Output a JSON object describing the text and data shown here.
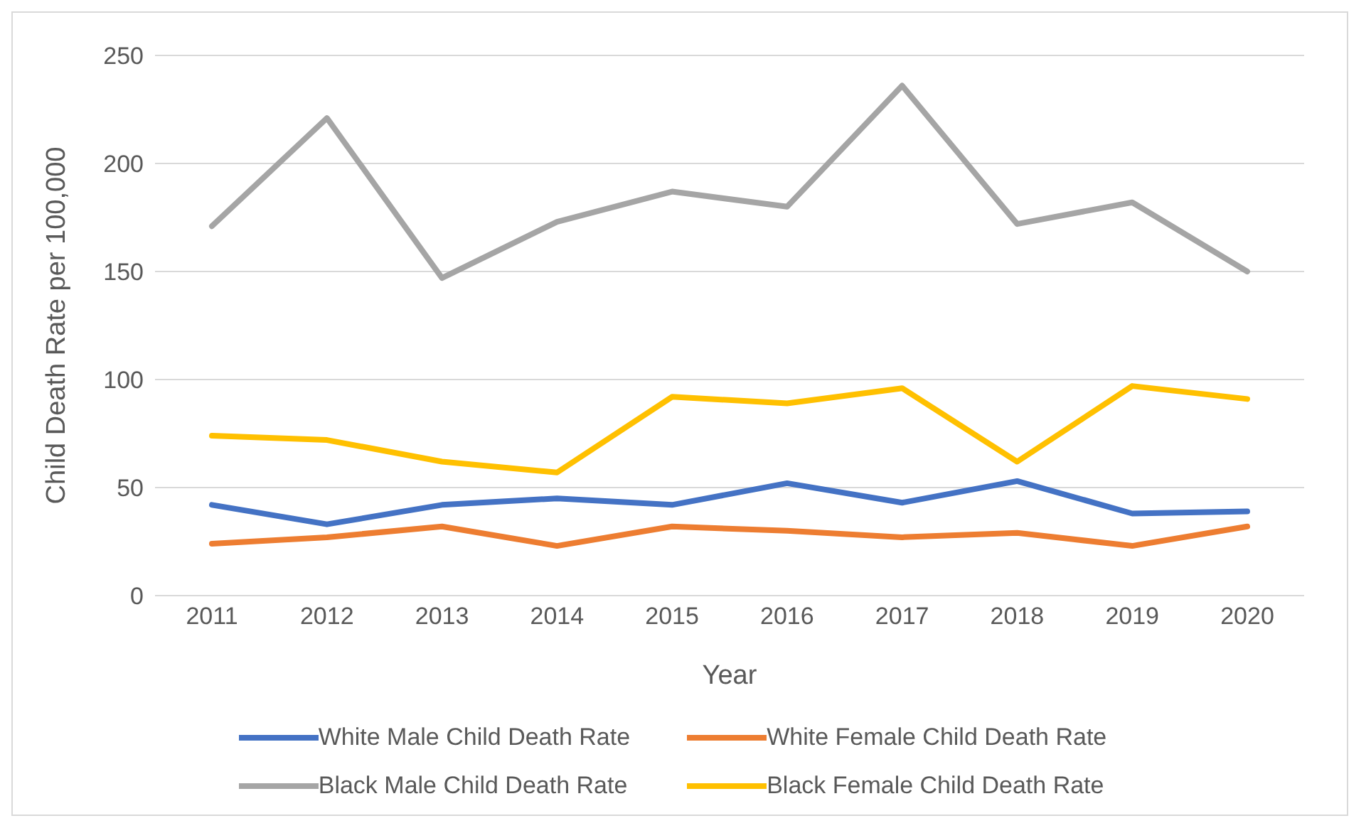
{
  "chart_data": {
    "type": "line",
    "xlabel": "Year",
    "ylabel": "Child Death Rate per 100,000",
    "categories": [
      "2011",
      "2012",
      "2013",
      "2014",
      "2015",
      "2016",
      "2017",
      "2018",
      "2019",
      "2020"
    ],
    "series": [
      {
        "name": "White Male Child Death Rate",
        "color": "#4472c4",
        "values": [
          42,
          33,
          42,
          45,
          42,
          52,
          43,
          53,
          38,
          39
        ]
      },
      {
        "name": "White Female Child Death Rate",
        "color": "#ed7d31",
        "values": [
          24,
          27,
          32,
          23,
          32,
          30,
          27,
          29,
          23,
          32
        ]
      },
      {
        "name": "Black Male Child Death Rate",
        "color": "#a5a5a5",
        "values": [
          171,
          221,
          147,
          173,
          187,
          180,
          236,
          172,
          182,
          150
        ]
      },
      {
        "name": "Black Female Child Death Rate",
        "color": "#ffc000",
        "values": [
          74,
          72,
          62,
          57,
          92,
          89,
          96,
          62,
          97,
          91
        ]
      }
    ],
    "ylim": [
      0,
      250
    ],
    "yticks": [
      0,
      50,
      100,
      150,
      200,
      250
    ],
    "grid": "y",
    "legend": "bottom",
    "marker": "none",
    "line_style": "solid"
  }
}
